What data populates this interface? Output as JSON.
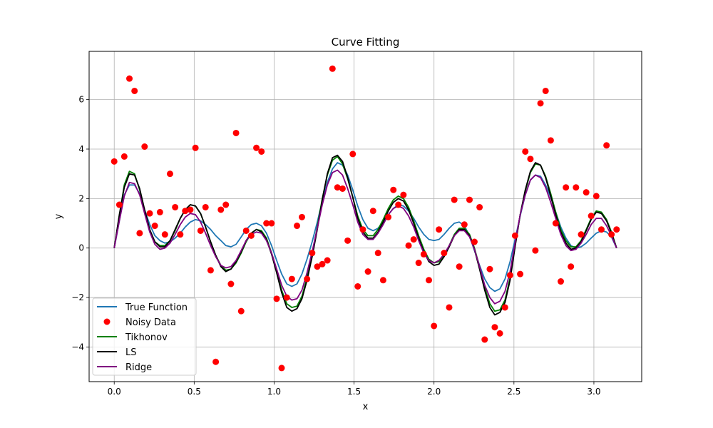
{
  "chart_data": {
    "type": "line",
    "title": "Curve Fitting",
    "xlabel": "x",
    "ylabel": "y",
    "xlim": [
      -0.157,
      3.299
    ],
    "ylim": [
      -5.4,
      7.95
    ],
    "xticks": [
      0.0,
      0.5,
      1.0,
      1.5,
      2.0,
      2.5,
      3.0
    ],
    "xtick_labels": [
      "0.0",
      "0.5",
      "1.0",
      "1.5",
      "2.0",
      "2.5",
      "3.0"
    ],
    "yticks": [
      -4,
      -2,
      0,
      2,
      4,
      6
    ],
    "ytick_labels": [
      "−4",
      "−2",
      "0",
      "2",
      "4",
      "6"
    ],
    "grid": true,
    "legend_position": "lower-left",
    "x": [
      0.0,
      0.032,
      0.063,
      0.095,
      0.127,
      0.159,
      0.19,
      0.222,
      0.254,
      0.286,
      0.317,
      0.349,
      0.381,
      0.413,
      0.444,
      0.476,
      0.508,
      0.54,
      0.571,
      0.603,
      0.635,
      0.667,
      0.698,
      0.73,
      0.762,
      0.794,
      0.825,
      0.857,
      0.889,
      0.921,
      0.952,
      0.984,
      1.016,
      1.047,
      1.079,
      1.111,
      1.143,
      1.174,
      1.206,
      1.238,
      1.27,
      1.301,
      1.333,
      1.365,
      1.396,
      1.428,
      1.46,
      1.492,
      1.523,
      1.555,
      1.587,
      1.619,
      1.65,
      1.682,
      1.714,
      1.746,
      1.777,
      1.809,
      1.841,
      1.873,
      1.904,
      1.936,
      1.968,
      2.0,
      2.031,
      2.063,
      2.095,
      2.127,
      2.158,
      2.19,
      2.222,
      2.253,
      2.285,
      2.317,
      2.349,
      2.38,
      2.412,
      2.444,
      2.476,
      2.507,
      2.539,
      2.571,
      2.603,
      2.634,
      2.666,
      2.698,
      2.73,
      2.761,
      2.793,
      2.825,
      2.856,
      2.888,
      2.92,
      2.952,
      2.983,
      3.015,
      3.047,
      3.079,
      3.11,
      3.142
    ],
    "series": [
      {
        "name": "True Function",
        "kind": "line",
        "color": "#1f77b4",
        "values": [
          0.0,
          1.1,
          2.15,
          2.55,
          2.55,
          2.2,
          1.55,
          0.95,
          0.5,
          0.3,
          0.2,
          0.25,
          0.4,
          0.6,
          0.85,
          1.05,
          1.15,
          1.1,
          0.95,
          0.75,
          0.5,
          0.3,
          0.1,
          0.05,
          0.15,
          0.45,
          0.75,
          0.95,
          1.0,
          0.9,
          0.6,
          0.1,
          -0.5,
          -1.05,
          -1.45,
          -1.55,
          -1.45,
          -1.05,
          -0.45,
          0.25,
          1.05,
          1.9,
          2.65,
          3.2,
          3.45,
          3.35,
          2.95,
          2.35,
          1.7,
          1.15,
          0.8,
          0.7,
          0.8,
          1.05,
          1.35,
          1.6,
          1.75,
          1.7,
          1.5,
          1.2,
          0.85,
          0.55,
          0.35,
          0.3,
          0.35,
          0.55,
          0.8,
          1.0,
          1.05,
          0.9,
          0.5,
          -0.1,
          -0.7,
          -1.25,
          -1.6,
          -1.75,
          -1.65,
          -1.25,
          -0.55,
          0.35,
          1.3,
          2.15,
          2.75,
          2.95,
          2.9,
          2.55,
          2.05,
          1.45,
          0.85,
          0.4,
          0.1,
          0.0,
          0.05,
          0.2,
          0.4,
          0.6,
          0.7,
          0.65,
          0.45,
          0.0
        ]
      },
      {
        "name": "Tikhonov",
        "kind": "line",
        "color": "#008000",
        "values": [
          0.0,
          1.3,
          2.55,
          3.1,
          3.0,
          2.35,
          1.45,
          0.7,
          0.25,
          0.1,
          0.1,
          0.3,
          0.7,
          1.2,
          1.55,
          1.75,
          1.7,
          1.4,
          0.85,
          0.25,
          -0.3,
          -0.7,
          -0.9,
          -0.85,
          -0.6,
          -0.2,
          0.25,
          0.6,
          0.75,
          0.7,
          0.4,
          -0.2,
          -0.95,
          -1.7,
          -2.25,
          -2.4,
          -2.35,
          -1.95,
          -1.2,
          -0.25,
          0.85,
          2.0,
          2.95,
          3.55,
          3.7,
          3.4,
          2.8,
          2.05,
          1.3,
          0.75,
          0.5,
          0.5,
          0.75,
          1.15,
          1.6,
          1.95,
          2.1,
          2.0,
          1.65,
          1.1,
          0.5,
          -0.05,
          -0.45,
          -0.6,
          -0.55,
          -0.3,
          0.1,
          0.55,
          0.8,
          0.8,
          0.55,
          0.0,
          -0.75,
          -1.6,
          -2.25,
          -2.55,
          -2.5,
          -2.1,
          -1.2,
          0.1,
          1.35,
          2.3,
          3.05,
          3.4,
          3.35,
          2.9,
          2.2,
          1.45,
          0.75,
          0.3,
          0.05,
          0.05,
          0.3,
          0.75,
          1.2,
          1.5,
          1.45,
          1.15,
          0.65,
          0.0
        ]
      },
      {
        "name": "LS",
        "kind": "line",
        "color": "#000000",
        "values": [
          0.0,
          1.35,
          2.45,
          3.0,
          2.95,
          2.4,
          1.55,
          0.75,
          0.25,
          0.05,
          0.05,
          0.3,
          0.75,
          1.2,
          1.55,
          1.75,
          1.7,
          1.4,
          0.85,
          0.25,
          -0.3,
          -0.75,
          -0.95,
          -0.85,
          -0.55,
          -0.15,
          0.3,
          0.6,
          0.75,
          0.65,
          0.35,
          -0.25,
          -1.0,
          -1.8,
          -2.4,
          -2.55,
          -2.45,
          -2.05,
          -1.3,
          -0.35,
          0.75,
          1.95,
          3.0,
          3.65,
          3.75,
          3.5,
          2.85,
          2.05,
          1.2,
          0.65,
          0.4,
          0.4,
          0.65,
          1.05,
          1.5,
          1.85,
          2.0,
          1.9,
          1.55,
          1.0,
          0.4,
          -0.15,
          -0.55,
          -0.7,
          -0.65,
          -0.35,
          0.05,
          0.5,
          0.75,
          0.75,
          0.5,
          -0.05,
          -0.85,
          -1.7,
          -2.4,
          -2.7,
          -2.6,
          -2.2,
          -1.3,
          0.05,
          1.35,
          2.35,
          3.1,
          3.45,
          3.35,
          2.85,
          2.1,
          1.35,
          0.65,
          0.2,
          -0.05,
          0.0,
          0.25,
          0.7,
          1.15,
          1.45,
          1.4,
          1.1,
          0.6,
          0.0
        ]
      },
      {
        "name": "Ridge",
        "kind": "line",
        "color": "#800080",
        "values": [
          0.0,
          1.1,
          2.1,
          2.65,
          2.6,
          2.15,
          1.4,
          0.65,
          0.15,
          -0.05,
          0.0,
          0.2,
          0.55,
          0.95,
          1.25,
          1.4,
          1.35,
          1.05,
          0.6,
          0.1,
          -0.35,
          -0.7,
          -0.8,
          -0.75,
          -0.5,
          -0.1,
          0.3,
          0.55,
          0.65,
          0.6,
          0.3,
          -0.2,
          -0.85,
          -1.5,
          -1.95,
          -2.1,
          -2.05,
          -1.7,
          -1.0,
          -0.15,
          0.8,
          1.75,
          2.55,
          3.05,
          3.15,
          2.95,
          2.4,
          1.75,
          1.05,
          0.55,
          0.35,
          0.35,
          0.6,
          0.95,
          1.35,
          1.6,
          1.7,
          1.6,
          1.3,
          0.85,
          0.3,
          -0.2,
          -0.5,
          -0.6,
          -0.5,
          -0.25,
          0.1,
          0.5,
          0.7,
          0.7,
          0.45,
          -0.05,
          -0.75,
          -1.5,
          -2.0,
          -2.25,
          -2.15,
          -1.75,
          -0.95,
          0.2,
          1.35,
          2.15,
          2.75,
          2.95,
          2.85,
          2.45,
          1.85,
          1.2,
          0.55,
          0.1,
          -0.1,
          -0.05,
          0.2,
          0.55,
          0.95,
          1.2,
          1.2,
          0.9,
          0.5,
          0.0
        ]
      }
    ],
    "scatter": {
      "name": "Noisy Data",
      "color": "#ff0000",
      "points": [
        [
          0.0,
          3.5
        ],
        [
          0.032,
          1.75
        ],
        [
          0.063,
          3.7
        ],
        [
          0.095,
          6.85
        ],
        [
          0.127,
          6.35
        ],
        [
          0.159,
          0.6
        ],
        [
          0.19,
          4.1
        ],
        [
          0.222,
          1.4
        ],
        [
          0.254,
          0.9
        ],
        [
          0.286,
          1.45
        ],
        [
          0.317,
          0.55
        ],
        [
          0.349,
          3.0
        ],
        [
          0.381,
          1.65
        ],
        [
          0.413,
          0.55
        ],
        [
          0.444,
          1.5
        ],
        [
          0.476,
          1.55
        ],
        [
          0.508,
          4.05
        ],
        [
          0.54,
          0.7
        ],
        [
          0.571,
          1.65
        ],
        [
          0.603,
          -0.9
        ],
        [
          0.635,
          -4.6
        ],
        [
          0.667,
          1.55
        ],
        [
          0.698,
          1.75
        ],
        [
          0.73,
          -1.45
        ],
        [
          0.762,
          4.65
        ],
        [
          0.794,
          -2.55
        ],
        [
          0.825,
          0.7
        ],
        [
          0.857,
          0.5
        ],
        [
          0.889,
          4.05
        ],
        [
          0.921,
          3.9
        ],
        [
          0.952,
          1.0
        ],
        [
          0.984,
          1.0
        ],
        [
          1.016,
          -2.05
        ],
        [
          1.047,
          -4.85
        ],
        [
          1.079,
          -2.0
        ],
        [
          1.111,
          -1.25
        ],
        [
          1.143,
          0.9
        ],
        [
          1.174,
          1.25
        ],
        [
          1.206,
          -1.25
        ],
        [
          1.238,
          -0.2
        ],
        [
          1.27,
          -0.75
        ],
        [
          1.301,
          -0.65
        ],
        [
          1.333,
          -0.5
        ],
        [
          1.365,
          7.25
        ],
        [
          1.396,
          2.45
        ],
        [
          1.428,
          2.4
        ],
        [
          1.46,
          0.3
        ],
        [
          1.492,
          3.8
        ],
        [
          1.523,
          -1.55
        ],
        [
          1.555,
          0.75
        ],
        [
          1.587,
          -0.95
        ],
        [
          1.619,
          1.5
        ],
        [
          1.65,
          -0.2
        ],
        [
          1.682,
          -1.3
        ],
        [
          1.714,
          1.25
        ],
        [
          1.746,
          2.35
        ],
        [
          1.777,
          1.75
        ],
        [
          1.809,
          2.15
        ],
        [
          1.841,
          0.1
        ],
        [
          1.873,
          0.35
        ],
        [
          1.904,
          -0.6
        ],
        [
          1.936,
          -0.25
        ],
        [
          1.968,
          -1.3
        ],
        [
          2.0,
          -3.15
        ],
        [
          2.031,
          0.75
        ],
        [
          2.063,
          -0.2
        ],
        [
          2.095,
          -2.4
        ],
        [
          2.127,
          1.95
        ],
        [
          2.158,
          -0.75
        ],
        [
          2.19,
          0.95
        ],
        [
          2.222,
          1.95
        ],
        [
          2.253,
          0.25
        ],
        [
          2.285,
          1.65
        ],
        [
          2.317,
          -3.7
        ],
        [
          2.349,
          -0.85
        ],
        [
          2.38,
          -3.2
        ],
        [
          2.412,
          -3.45
        ],
        [
          2.444,
          -2.4
        ],
        [
          2.476,
          -1.1
        ],
        [
          2.507,
          0.5
        ],
        [
          2.539,
          -1.05
        ],
        [
          2.571,
          3.9
        ],
        [
          2.603,
          3.6
        ],
        [
          2.634,
          -0.1
        ],
        [
          2.666,
          5.85
        ],
        [
          2.698,
          6.35
        ],
        [
          2.73,
          4.35
        ],
        [
          2.761,
          1.0
        ],
        [
          2.793,
          -1.35
        ],
        [
          2.825,
          2.45
        ],
        [
          2.856,
          -0.75
        ],
        [
          2.888,
          2.45
        ],
        [
          2.92,
          0.55
        ],
        [
          2.952,
          2.25
        ],
        [
          2.983,
          1.3
        ],
        [
          3.015,
          2.1
        ],
        [
          3.047,
          0.75
        ],
        [
          3.079,
          4.15
        ],
        [
          3.11,
          0.55
        ],
        [
          3.142,
          0.75
        ]
      ]
    },
    "legend": [
      {
        "label": "True Function",
        "kind": "line",
        "color": "#1f77b4"
      },
      {
        "label": "Noisy Data",
        "kind": "marker",
        "color": "#ff0000"
      },
      {
        "label": "Tikhonov",
        "kind": "line",
        "color": "#008000"
      },
      {
        "label": "LS",
        "kind": "line",
        "color": "#000000"
      },
      {
        "label": "Ridge",
        "kind": "line",
        "color": "#800080"
      }
    ]
  }
}
